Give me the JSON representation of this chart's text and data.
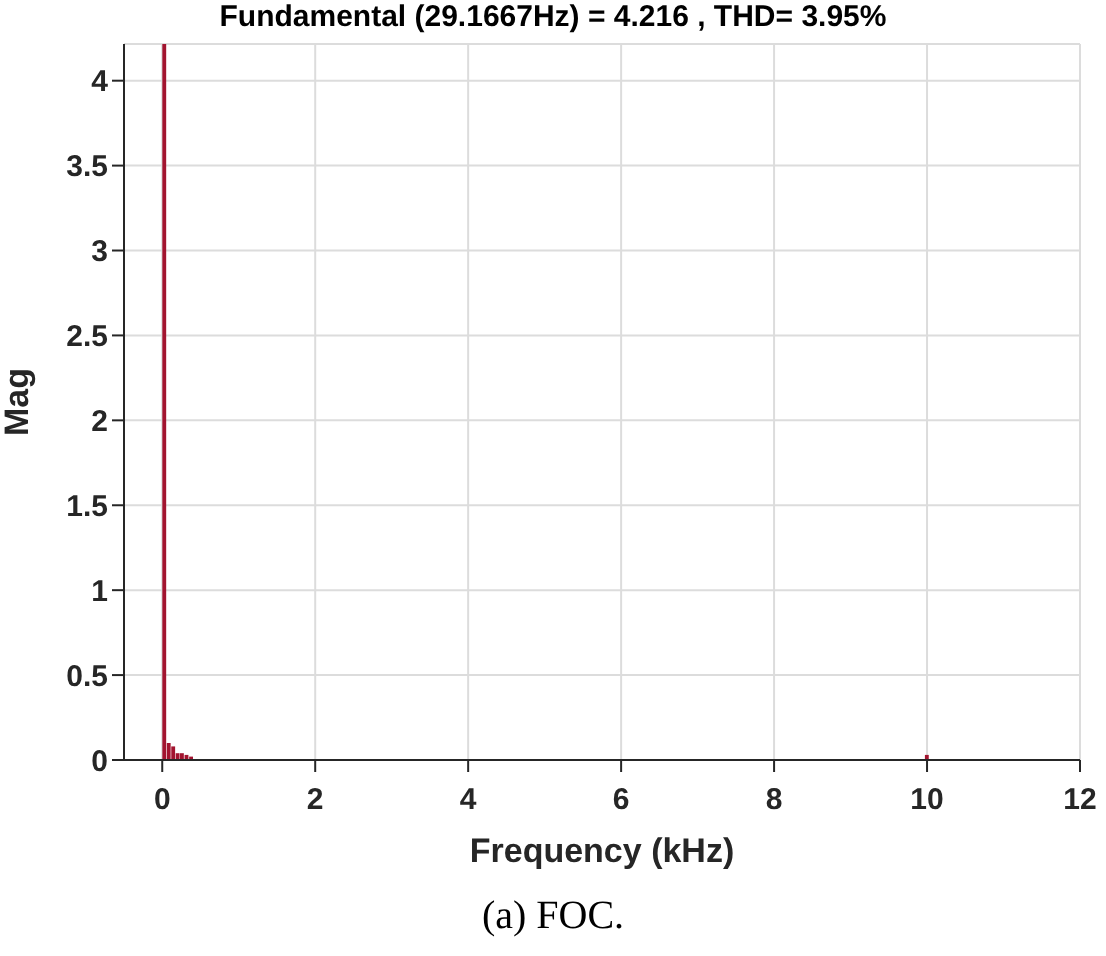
{
  "chart_data": {
    "type": "bar",
    "title": "Fundamental (29.1667Hz) = 4.216 , THD= 3.95%",
    "xlabel": "Frequency (kHz)",
    "ylabel": "Mag",
    "annotations": [
      "(a) FOC."
    ],
    "x": [
      0.029167,
      0.0875,
      0.146,
      0.204,
      0.26,
      0.32,
      0.38,
      0.5,
      0.6,
      10.0
    ],
    "series": [
      {
        "color": "#a2142f",
        "values": [
          4.216,
          0.1,
          0.08,
          0.04,
          0.04,
          0.03,
          0.02,
          null,
          null,
          0.03
        ]
      }
    ],
    "xlim": [
      -0.5,
      12
    ],
    "xticks": [
      0,
      2,
      4,
      6,
      8,
      10,
      12
    ],
    "ylim": [
      0,
      4.216
    ],
    "yticks": [
      0,
      0.5,
      1,
      1.5,
      2,
      2.5,
      3,
      3.5,
      4
    ],
    "grid": true,
    "legend": false
  }
}
